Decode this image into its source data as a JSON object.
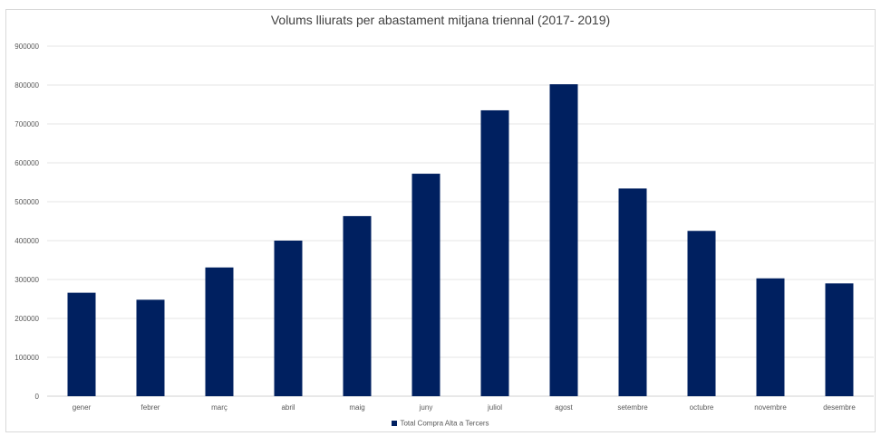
{
  "chart_data": {
    "type": "bar",
    "title": "Volums lliurats per abastament mitjana triennal (2017- 2019)",
    "categories": [
      "gener",
      "febrer",
      "març",
      "abril",
      "maig",
      "juny",
      "juliol",
      "agost",
      "setembre",
      "octubre",
      "novembre",
      "desembre"
    ],
    "series": [
      {
        "name": "Total Compra Alta a Tercers",
        "color": "#002060",
        "values": [
          266000,
          248000,
          331000,
          400000,
          463000,
          572000,
          735000,
          802000,
          534000,
          425000,
          303000,
          290000
        ]
      }
    ],
    "yticks": [
      "0",
      "100000",
      "200000",
      "300000",
      "400000",
      "500000",
      "600000",
      "700000",
      "800000",
      "900000"
    ],
    "ylim": [
      0,
      900000
    ],
    "grid": true,
    "legend": "bottom"
  }
}
